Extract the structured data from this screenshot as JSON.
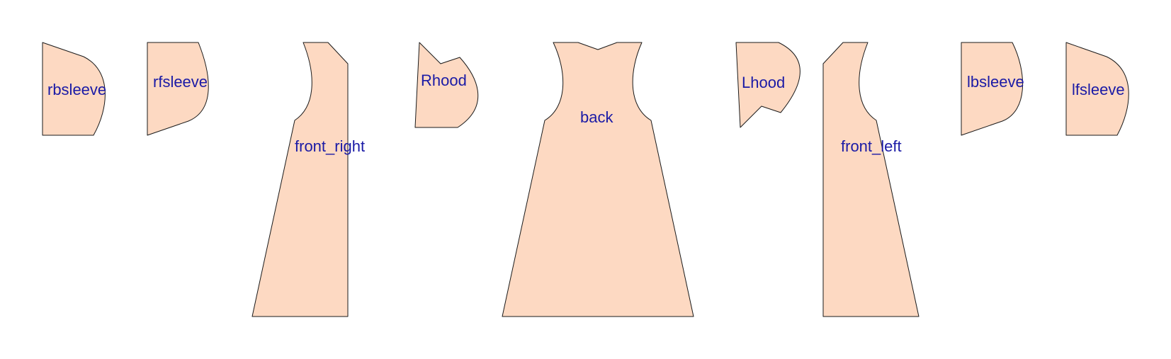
{
  "colors": {
    "piece_fill": "#fdd9c2",
    "piece_stroke": "#1a1a1a",
    "label_color": "#1a1aa6"
  },
  "pieces": [
    {
      "id": "rbsleeve",
      "label": "rbsleeve"
    },
    {
      "id": "rfsleeve",
      "label": "rfsleeve"
    },
    {
      "id": "front_right",
      "label": "front_right"
    },
    {
      "id": "Rhood",
      "label": "Rhood"
    },
    {
      "id": "back",
      "label": "back"
    },
    {
      "id": "Lhood",
      "label": "Lhood"
    },
    {
      "id": "front_left",
      "label": "front_left"
    },
    {
      "id": "lbsleeve",
      "label": "lbsleeve"
    },
    {
      "id": "lfsleeve",
      "label": "lfsleeve"
    }
  ]
}
